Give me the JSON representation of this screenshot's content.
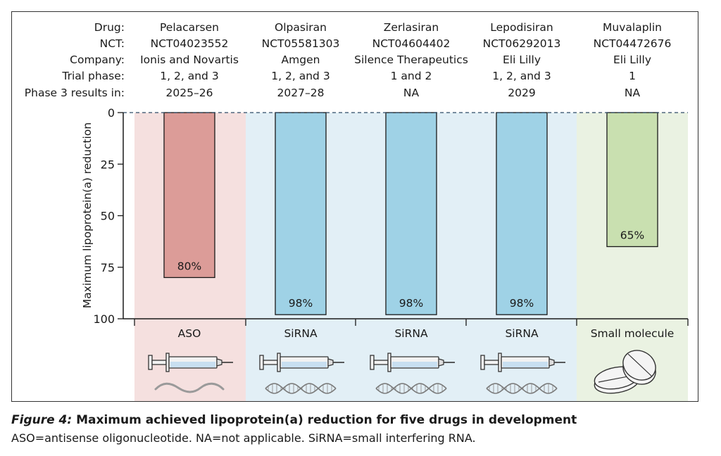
{
  "header": {
    "row_labels": [
      "Drug:",
      "NCT:",
      "Company:",
      "Trial phase:",
      "Phase 3 results in:"
    ]
  },
  "drugs": [
    {
      "name": "Pelacarsen",
      "nct": "NCT04023552",
      "company": "Ionis and Novartis",
      "phase": "1, 2, and 3",
      "results": "2025–26",
      "type": "ASO",
      "reduction": 80,
      "label": "80%",
      "bar_color": "#dc9c98",
      "band_color": "#f5e0df",
      "icon": "syringe-icon",
      "molecule_icon": "oligonucleotide-wave-icon"
    },
    {
      "name": "Olpasiran",
      "nct": "NCT05581303",
      "company": "Amgen",
      "phase": "1, 2, and 3",
      "results": "2027–28",
      "type": "SiRNA",
      "reduction": 98,
      "label": "98%",
      "bar_color": "#9fd2e6",
      "band_color": "#e2eff6",
      "icon": "syringe-icon",
      "molecule_icon": "double-helix-icon"
    },
    {
      "name": "Zerlasiran",
      "nct": "NCT04604402",
      "company": "Silence Therapeutics",
      "phase": "1 and 2",
      "results": "NA",
      "type": "SiRNA",
      "reduction": 98,
      "label": "98%",
      "bar_color": "#9fd2e6",
      "band_color": "#e2eff6",
      "icon": "syringe-icon",
      "molecule_icon": "double-helix-icon"
    },
    {
      "name": "Lepodisiran",
      "nct": "NCT06292013",
      "company": "Eli Lilly",
      "phase": "1, 2, and 3",
      "results": "2029",
      "type": "SiRNA",
      "reduction": 98,
      "label": "98%",
      "bar_color": "#9fd2e6",
      "band_color": "#e2eff6",
      "icon": "syringe-icon",
      "molecule_icon": "double-helix-icon"
    },
    {
      "name": "Muvalaplin",
      "nct": "NCT04472676",
      "company": "Eli Lilly",
      "phase": "1",
      "results": "NA",
      "type": "Small molecule",
      "reduction": 65,
      "label": "65%",
      "bar_color": "#c9e0b0",
      "band_color": "#eaf2e2",
      "icon": "pills-icon",
      "molecule_icon": ""
    }
  ],
  "chart_data": {
    "type": "bar",
    "categories": [
      "Pelacarsen",
      "Olpasiran",
      "Zerlasiran",
      "Lepodisiran",
      "Muvalaplin"
    ],
    "values": [
      80,
      98,
      98,
      98,
      65
    ],
    "data_labels": [
      "80%",
      "98%",
      "98%",
      "98%",
      "65%"
    ],
    "category_groups": [
      "ASO",
      "SiRNA",
      "SiRNA",
      "SiRNA",
      "Small molecule"
    ],
    "ylabel": "Maximum lipoprotein(a) reduction",
    "yticks": [
      "0",
      "25",
      "50",
      "75",
      "100"
    ],
    "ylim": [
      0,
      100
    ],
    "y_axis_inverted": true,
    "zero_line": "dashed",
    "grid": false,
    "legend": "none"
  },
  "caption": {
    "figure_label": "Figure 4:",
    "title": "Maximum achieved lipoprotein(a) reduction for five drugs in development",
    "note": "ASO=antisense oligonucleotide. NA=not applicable. SiRNA=small interfering RNA."
  }
}
